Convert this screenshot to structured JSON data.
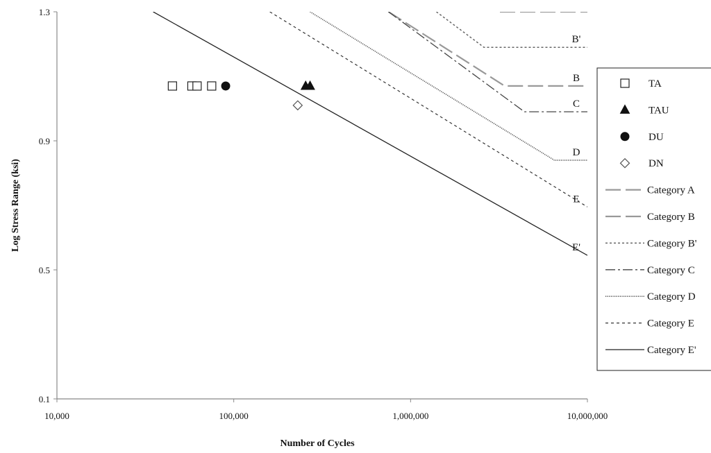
{
  "chart_data": {
    "type": "line",
    "xlabel": "Number of Cycles",
    "ylabel": "Log Stress Range (ksi)",
    "x_scale": "log",
    "xlim": [
      10000,
      10000000
    ],
    "ylim": [
      0.1,
      1.3
    ],
    "x_ticks": [
      10000,
      100000,
      1000000,
      10000000
    ],
    "x_tick_labels": [
      "10,000",
      "100,000",
      "1,000,000",
      "10,000,000"
    ],
    "y_ticks": [
      0.1,
      0.5,
      0.9,
      1.3
    ],
    "y_tick_labels": [
      "0.1",
      "0.5",
      "0.9",
      "1.3"
    ],
    "grid": false,
    "legend_position": "right",
    "series": [
      {
        "name": "Category A",
        "style": "long-dash",
        "color": "#999999",
        "points": [
          [
            3200000,
            1.3
          ],
          [
            10000000,
            1.3
          ]
        ]
      },
      {
        "name": "Category B",
        "style": "long-dash",
        "color": "#999999",
        "curve_label": "B",
        "points": [
          [
            750000,
            1.3
          ],
          [
            3400000,
            1.07
          ],
          [
            10000000,
            1.07
          ]
        ]
      },
      {
        "name": "Category B'",
        "style": "dotted",
        "color": "#666666",
        "curve_label": "B'",
        "points": [
          [
            1400000,
            1.3
          ],
          [
            2600000,
            1.19
          ],
          [
            10000000,
            1.19
          ]
        ]
      },
      {
        "name": "Category C",
        "style": "dash-dot",
        "color": "#444444",
        "curve_label": "C",
        "points": [
          [
            750000,
            1.3
          ],
          [
            4400000,
            0.99
          ],
          [
            10000000,
            0.99
          ]
        ]
      },
      {
        "name": "Category D",
        "style": "fine-dot",
        "color": "#555555",
        "curve_label": "D",
        "points": [
          [
            270000,
            1.3
          ],
          [
            6500000,
            0.84
          ],
          [
            10000000,
            0.84
          ]
        ]
      },
      {
        "name": "Category E",
        "style": "short-dash",
        "color": "#333333",
        "curve_label": "E",
        "points": [
          [
            160000,
            1.3
          ],
          [
            10000000,
            0.695
          ]
        ]
      },
      {
        "name": "Category E'",
        "style": "solid",
        "color": "#222222",
        "curve_label": "E'",
        "points": [
          [
            35000,
            1.3
          ],
          [
            10000000,
            0.545
          ]
        ]
      }
    ],
    "scatter": [
      {
        "name": "TA",
        "marker": "square",
        "points": [
          [
            45000,
            1.07
          ],
          [
            58000,
            1.07
          ],
          [
            62000,
            1.07
          ],
          [
            75000,
            1.07
          ]
        ]
      },
      {
        "name": "TAU",
        "marker": "triangle",
        "points": [
          [
            255000,
            1.07
          ],
          [
            270000,
            1.07
          ]
        ]
      },
      {
        "name": "DU",
        "marker": "circle",
        "points": [
          [
            90000,
            1.07
          ]
        ]
      },
      {
        "name": "DN",
        "marker": "diamond",
        "points": [
          [
            230000,
            1.01
          ]
        ]
      }
    ],
    "legend": [
      "TA",
      "TAU",
      "DU",
      "DN",
      "Category A",
      "Category B",
      "Category B'",
      "Category C",
      "Category D",
      "Category E",
      "Category E'"
    ]
  }
}
